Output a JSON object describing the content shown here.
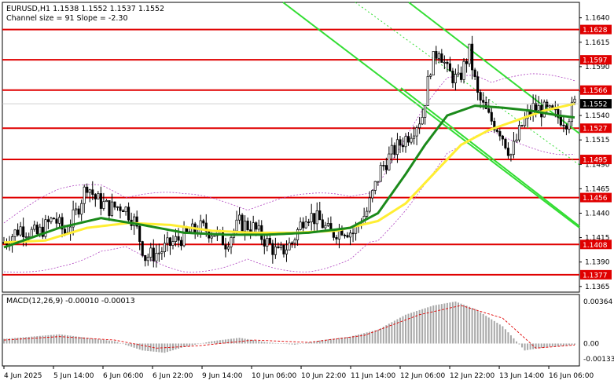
{
  "header": {
    "symbol_line": "EURUSD,H1  1.1538 1.1552 1.1537 1.1552",
    "channel_line": "Channel size = 91 Slope = -2.30"
  },
  "macd": {
    "label": "MACD(12,26,9) -0.00010 -0.00013",
    "axis_ticks": [
      "0.00364",
      "0.00",
      "-0.00133"
    ]
  },
  "chart_data": {
    "type": "candlestick",
    "symbol": "EURUSD",
    "timeframe": "H1",
    "ohlc": {
      "open": 1.1538,
      "high": 1.1552,
      "low": 1.1537,
      "close": 1.1552
    },
    "current_price": "1.1552",
    "y_ticks": [
      "1.1640",
      "1.1615",
      "1.1590",
      "1.1565",
      "1.1540",
      "1.1515",
      "1.1490",
      "1.1465",
      "1.1440",
      "1.1415",
      "1.1390",
      "1.1365"
    ],
    "x_ticks": [
      "4 Jun 2025",
      "5 Jun 14:00",
      "6 Jun 06:00",
      "6 Jun 22:00",
      "9 Jun 14:00",
      "10 Jun 06:00",
      "10 Jun 22:00",
      "11 Jun 14:00",
      "12 Jun 06:00",
      "12 Jun 22:00",
      "13 Jun 14:00",
      "16 Jun 06:00"
    ],
    "levels": [
      {
        "label": "1.1628",
        "value": 1.1628
      },
      {
        "label": "1.1597",
        "value": 1.1597
      },
      {
        "label": "1.1566",
        "value": 1.1566
      },
      {
        "label": "1.1527",
        "value": 1.1527
      },
      {
        "label": "1.1495",
        "value": 1.1495
      },
      {
        "label": "1.1456",
        "value": 1.1456
      },
      {
        "label": "1.1408",
        "value": 1.1408
      },
      {
        "label": "1.1377",
        "value": 1.1377
      }
    ],
    "ylim": [
      1.136,
      1.1655
    ],
    "close_path": [
      [
        0,
        1.141
      ],
      [
        6,
        1.1425
      ],
      [
        12,
        1.1418
      ],
      [
        18,
        1.1435
      ],
      [
        22,
        1.142
      ],
      [
        26,
        1.144
      ],
      [
        30,
        1.147
      ],
      [
        33,
        1.1455
      ],
      [
        38,
        1.1445
      ],
      [
        43,
        1.1448
      ],
      [
        47,
        1.1432
      ],
      [
        51,
        1.1395
      ],
      [
        56,
        1.14
      ],
      [
        61,
        1.141
      ],
      [
        66,
        1.1418
      ],
      [
        71,
        1.1425
      ],
      [
        76,
        1.142
      ],
      [
        80,
        1.141
      ],
      [
        85,
        1.143
      ],
      [
        90,
        1.1425
      ],
      [
        95,
        1.141
      ],
      [
        99,
        1.1398
      ],
      [
        104,
        1.141
      ],
      [
        109,
        1.144
      ],
      [
        114,
        1.1432
      ],
      [
        118,
        1.1418
      ],
      [
        122,
        1.1425
      ],
      [
        126,
        1.142
      ],
      [
        131,
        1.1442
      ],
      [
        136,
        1.1485
      ],
      [
        141,
        1.1505
      ],
      [
        146,
        1.152
      ],
      [
        151,
        1.154
      ],
      [
        154,
        1.159
      ],
      [
        157,
        1.161
      ],
      [
        160,
        1.1585
      ],
      [
        164,
        1.1575
      ],
      [
        168,
        1.1605
      ],
      [
        171,
        1.156
      ],
      [
        175,
        1.1538
      ],
      [
        179,
        1.1525
      ],
      [
        183,
        1.15
      ],
      [
        187,
        1.153
      ],
      [
        191,
        1.1548
      ],
      [
        195,
        1.1545
      ],
      [
        199,
        1.154
      ],
      [
        203,
        1.1535
      ],
      [
        206,
        1.1552
      ]
    ],
    "ma_green": [
      [
        0,
        1.1405
      ],
      [
        20,
        1.1425
      ],
      [
        35,
        1.1435
      ],
      [
        50,
        1.1428
      ],
      [
        65,
        1.142
      ],
      [
        80,
        1.1418
      ],
      [
        95,
        1.1418
      ],
      [
        110,
        1.142
      ],
      [
        125,
        1.1425
      ],
      [
        135,
        1.144
      ],
      [
        145,
        1.148
      ],
      [
        152,
        1.151
      ],
      [
        160,
        1.154
      ],
      [
        170,
        1.155
      ],
      [
        180,
        1.1548
      ],
      [
        190,
        1.1545
      ],
      [
        200,
        1.154
      ],
      [
        206,
        1.1538
      ]
    ],
    "ma_yellow": [
      [
        0,
        1.141
      ],
      [
        15,
        1.1412
      ],
      [
        30,
        1.1425
      ],
      [
        45,
        1.143
      ],
      [
        60,
        1.1428
      ],
      [
        75,
        1.1422
      ],
      [
        90,
        1.142
      ],
      [
        105,
        1.142
      ],
      [
        120,
        1.1422
      ],
      [
        135,
        1.1432
      ],
      [
        145,
        1.145
      ],
      [
        155,
        1.148
      ],
      [
        165,
        1.151
      ],
      [
        175,
        1.1525
      ],
      [
        185,
        1.1535
      ],
      [
        195,
        1.1545
      ],
      [
        206,
        1.1552
      ]
    ],
    "macd_hist": [
      [
        0,
        0.0004
      ],
      [
        10,
        0.0006
      ],
      [
        20,
        0.0008
      ],
      [
        30,
        0.0005
      ],
      [
        40,
        0.0002
      ],
      [
        50,
        -0.0006
      ],
      [
        58,
        -0.0008
      ],
      [
        65,
        -0.0003
      ],
      [
        75,
        0.0002
      ],
      [
        85,
        0.0005
      ],
      [
        95,
        0.0001
      ],
      [
        105,
        -0.0001
      ],
      [
        115,
        0.0003
      ],
      [
        125,
        0.0006
      ],
      [
        135,
        0.0012
      ],
      [
        145,
        0.0025
      ],
      [
        155,
        0.0033
      ],
      [
        163,
        0.00364
      ],
      [
        170,
        0.003
      ],
      [
        180,
        0.0015
      ],
      [
        188,
        -0.0006
      ],
      [
        196,
        -0.0003
      ],
      [
        206,
        -0.0001
      ]
    ],
    "macd_signal": [
      [
        0,
        0.0003
      ],
      [
        20,
        0.0006
      ],
      [
        40,
        0.0003
      ],
      [
        55,
        -0.0004
      ],
      [
        70,
        -0.0002
      ],
      [
        90,
        0.0003
      ],
      [
        110,
        0.0001
      ],
      [
        130,
        0.0007
      ],
      [
        150,
        0.0025
      ],
      [
        165,
        0.0033
      ],
      [
        180,
        0.0022
      ],
      [
        192,
        -0.0004
      ],
      [
        206,
        -0.00013
      ]
    ],
    "macd_ylim": [
      -0.00133,
      0.00364
    ],
    "colors": {
      "level": "#e00000",
      "ma_fast": "#1b8a1b",
      "ma_slow": "#ffee33",
      "channel": "#33dd33",
      "candle": "#000000",
      "macd_hist": "#a8a8a8",
      "macd_signal": "#e00000"
    }
  }
}
